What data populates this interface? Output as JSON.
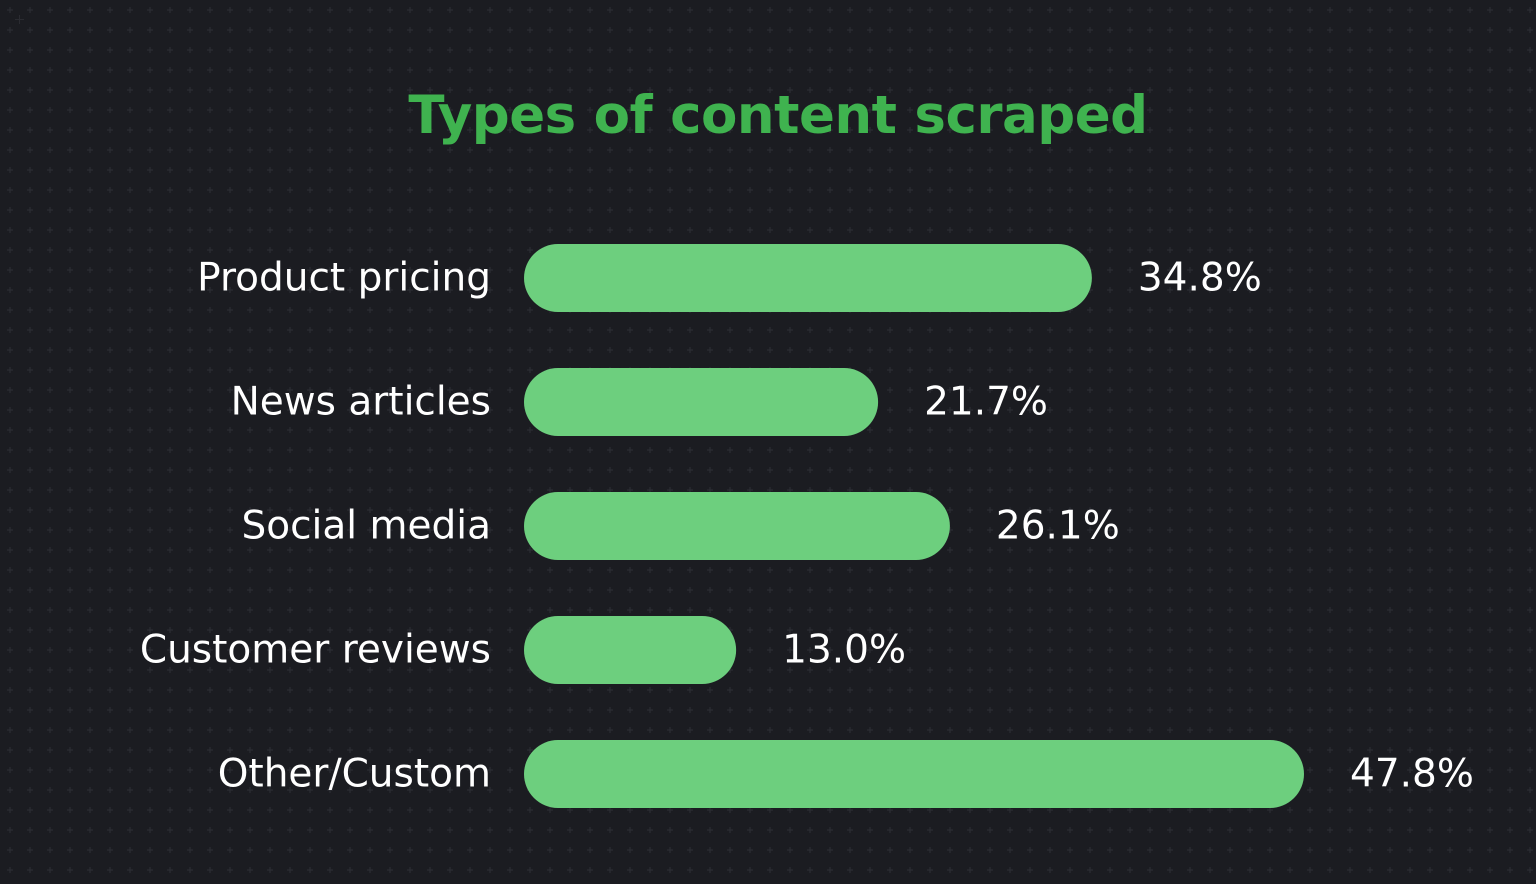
{
  "colors": {
    "background": "#1b1c21",
    "grid_mark": "#2b2c33",
    "title": "#3fb34f",
    "bar": "#6dcf7e",
    "text": "#ffffff"
  },
  "chart_data": {
    "type": "bar",
    "orientation": "horizontal",
    "title": "Types of content scraped",
    "categories": [
      "Product pricing",
      "News articles",
      "Social media",
      "Customer reviews",
      "Other/Custom"
    ],
    "values": [
      34.8,
      21.7,
      26.1,
      13.0,
      47.8
    ],
    "value_labels": [
      "34.8%",
      "21.7%",
      "26.1%",
      "13.0%",
      "47.8%"
    ],
    "xlim": [
      0,
      47.8
    ],
    "grid": false,
    "legend": "none"
  }
}
